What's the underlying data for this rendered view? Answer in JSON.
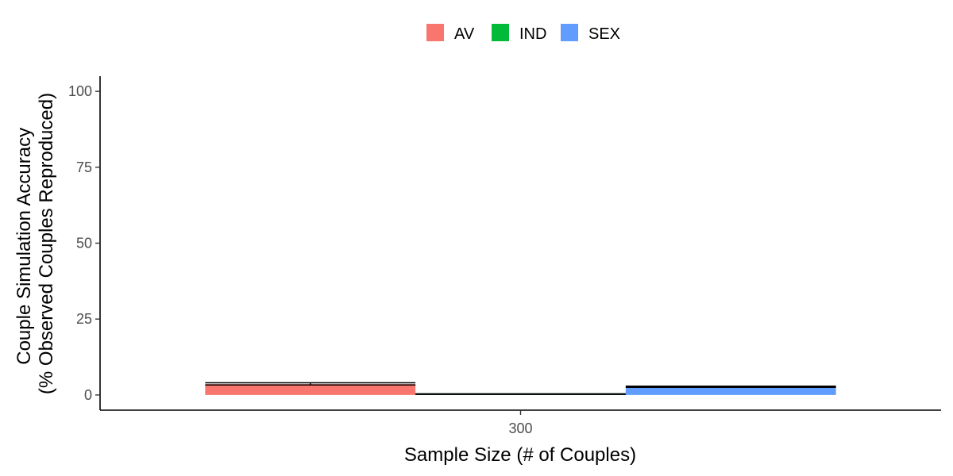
{
  "chart_data": {
    "type": "bar",
    "categories": [
      "300"
    ],
    "series": [
      {
        "name": "AV",
        "values": [
          3.6
        ],
        "color": "#F8766D"
      },
      {
        "name": "IND",
        "values": [
          0.3
        ],
        "color": "#00BA38"
      },
      {
        "name": "SEX",
        "values": [
          2.7
        ],
        "color": "#619CFF"
      }
    ],
    "errorbars": [
      {
        "series": "AV",
        "ymin": [
          3.3
        ],
        "ymax": [
          4.0
        ]
      },
      {
        "series": "IND",
        "ymin": [
          0.2
        ],
        "ymax": [
          0.4
        ]
      },
      {
        "series": "SEX",
        "ymin": [
          2.5
        ],
        "ymax": [
          2.9
        ]
      }
    ],
    "xlabel": "Sample Size (# of Couples)",
    "ylabel_line1": "Couple Simulation Accuracy",
    "ylabel_line2": "(% Observed Couples Reproduced)",
    "ylim": [
      -5,
      105
    ],
    "yticks": [
      0,
      25,
      50,
      75,
      100
    ],
    "grid": false,
    "legend_position": "top"
  }
}
